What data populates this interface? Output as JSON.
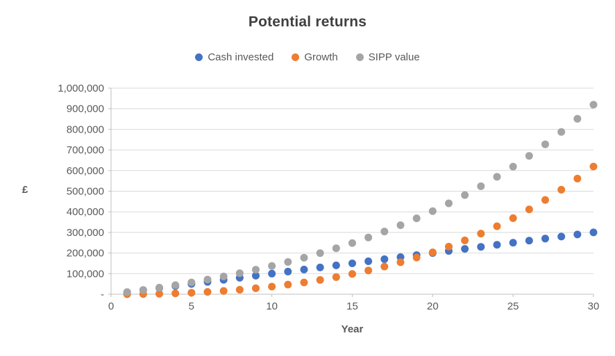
{
  "chart_data": {
    "type": "scatter",
    "title": "Potential returns",
    "xlabel": "Year",
    "ylabel": "£",
    "xlim": [
      0,
      30
    ],
    "ylim": [
      0,
      1000000
    ],
    "x_ticks": [
      0,
      5,
      10,
      15,
      20,
      25,
      30
    ],
    "y_ticks": [
      0,
      100000,
      200000,
      300000,
      400000,
      500000,
      600000,
      700000,
      800000,
      900000,
      1000000
    ],
    "y_tick_labels": [
      "-",
      "100,000",
      "200,000",
      "300,000",
      "400,000",
      "500,000",
      "600,000",
      "700,000",
      "800,000",
      "900,000",
      "1,000,000"
    ],
    "grid": "horizontal",
    "legend_position": "top",
    "marker": "circle",
    "x": [
      1,
      2,
      3,
      4,
      5,
      6,
      7,
      8,
      9,
      10,
      11,
      12,
      13,
      14,
      15,
      16,
      17,
      18,
      19,
      20,
      21,
      22,
      23,
      24,
      25,
      26,
      27,
      28,
      29,
      30
    ],
    "series": [
      {
        "name": "Cash invested",
        "color": "#4472C4",
        "values": [
          10000,
          20000,
          30000,
          40000,
          50000,
          60000,
          70000,
          80000,
          90000,
          100000,
          110000,
          120000,
          130000,
          140000,
          150000,
          160000,
          170000,
          180000,
          190000,
          200000,
          210000,
          220000,
          230000,
          240000,
          250000,
          260000,
          270000,
          280000,
          290000,
          300000
        ]
      },
      {
        "name": "Growth",
        "color": "#ED7D31",
        "values": [
          0,
          685,
          2102,
          4301,
          7336,
          11263,
          16144,
          22045,
          29035,
          37194,
          46592,
          57319,
          69465,
          83128,
          98413,
          115429,
          134296,
          155150,
          178108,
          203323,
          230951,
          261156,
          294115,
          330017,
          369063,
          411469,
          457465,
          507296,
          561226,
          619535
        ]
      },
      {
        "name": "SIPP value",
        "color": "#A5A5A5",
        "values": [
          10000,
          20685,
          32102,
          44301,
          57336,
          71263,
          86144,
          102045,
          119035,
          137194,
          156592,
          177319,
          199465,
          223128,
          248413,
          275429,
          304296,
          335150,
          368108,
          403323,
          440951,
          481156,
          524115,
          570017,
          619063,
          671469,
          727465,
          787296,
          851226,
          919535
        ]
      }
    ],
    "style": {
      "title_color": "#404040",
      "axis_text_color": "#595959",
      "gridline_color": "#D9D9D9",
      "axis_line_color": "#BFBFBF"
    }
  }
}
